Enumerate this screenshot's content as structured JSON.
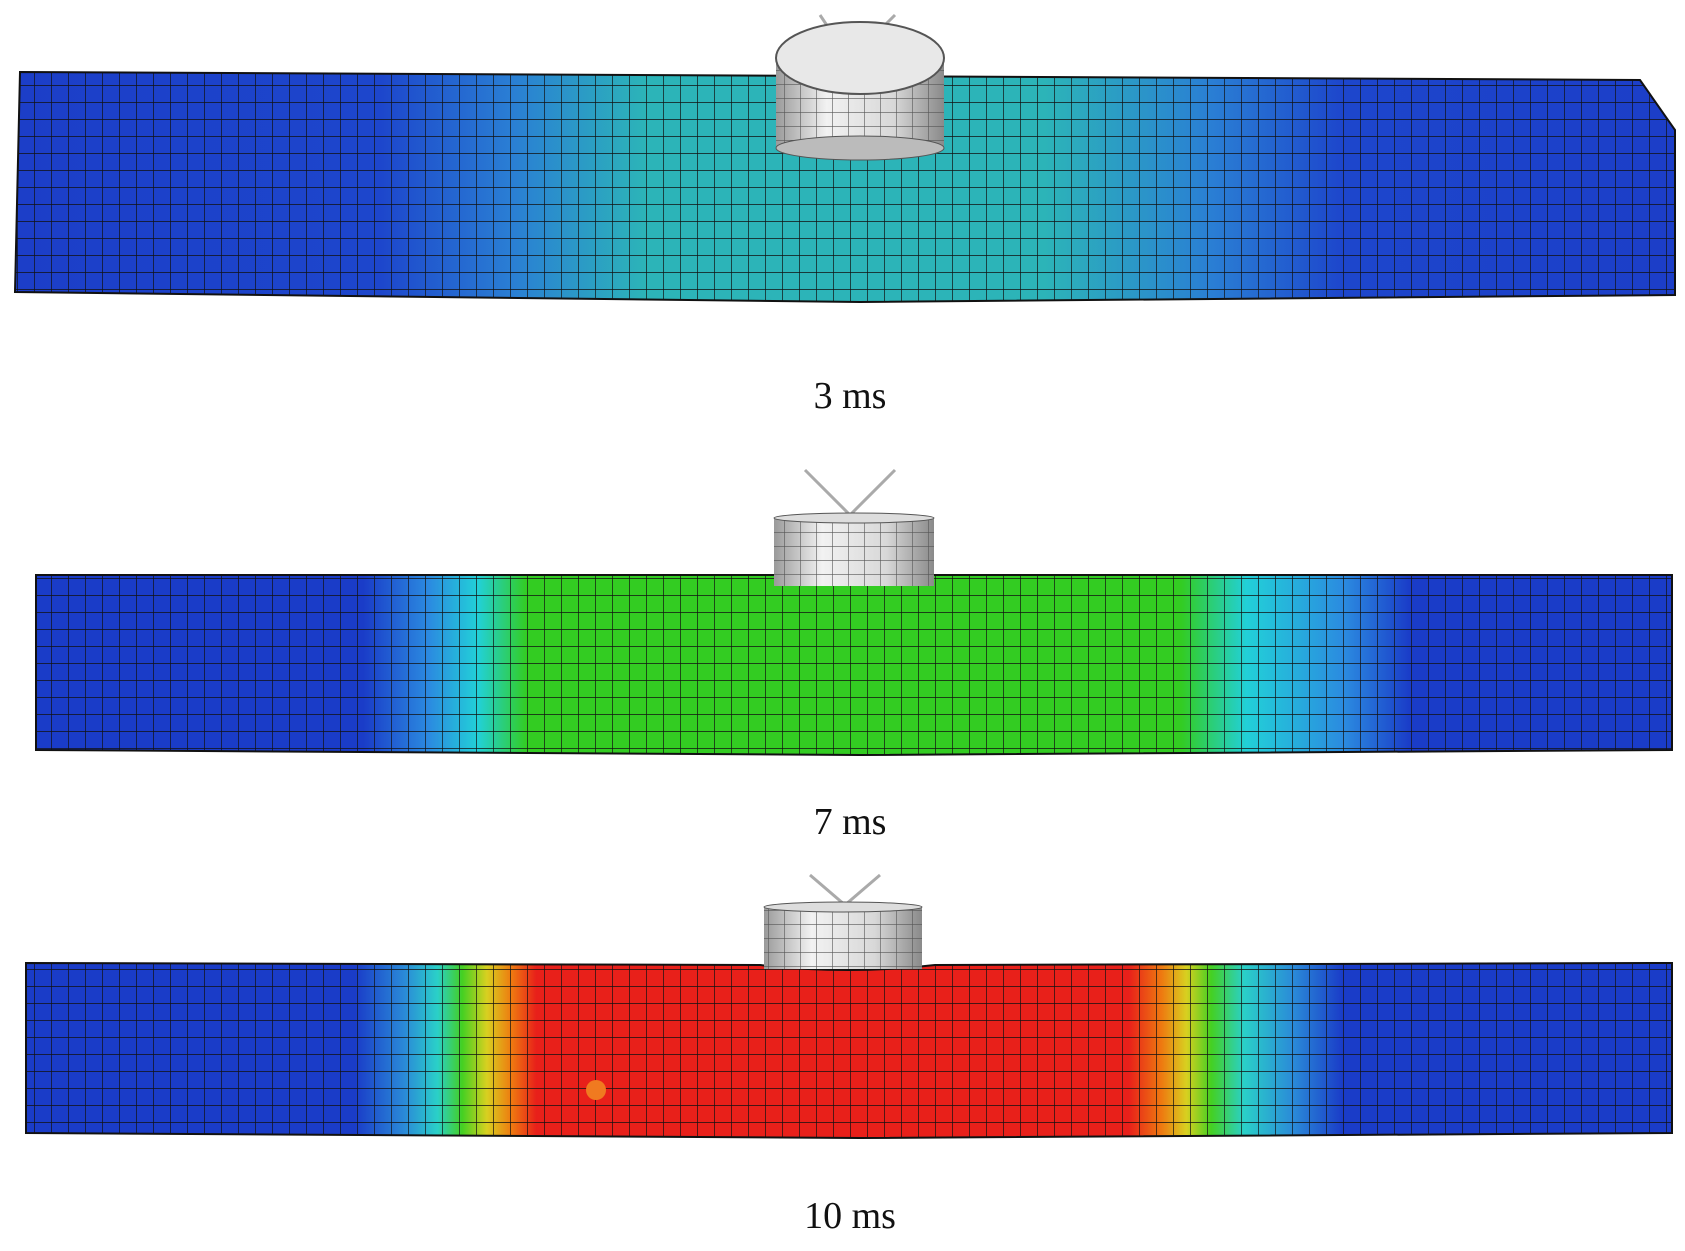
{
  "panels": [
    {
      "label": "3 ms"
    },
    {
      "label": "7 ms"
    },
    {
      "label": "10 ms"
    }
  ]
}
